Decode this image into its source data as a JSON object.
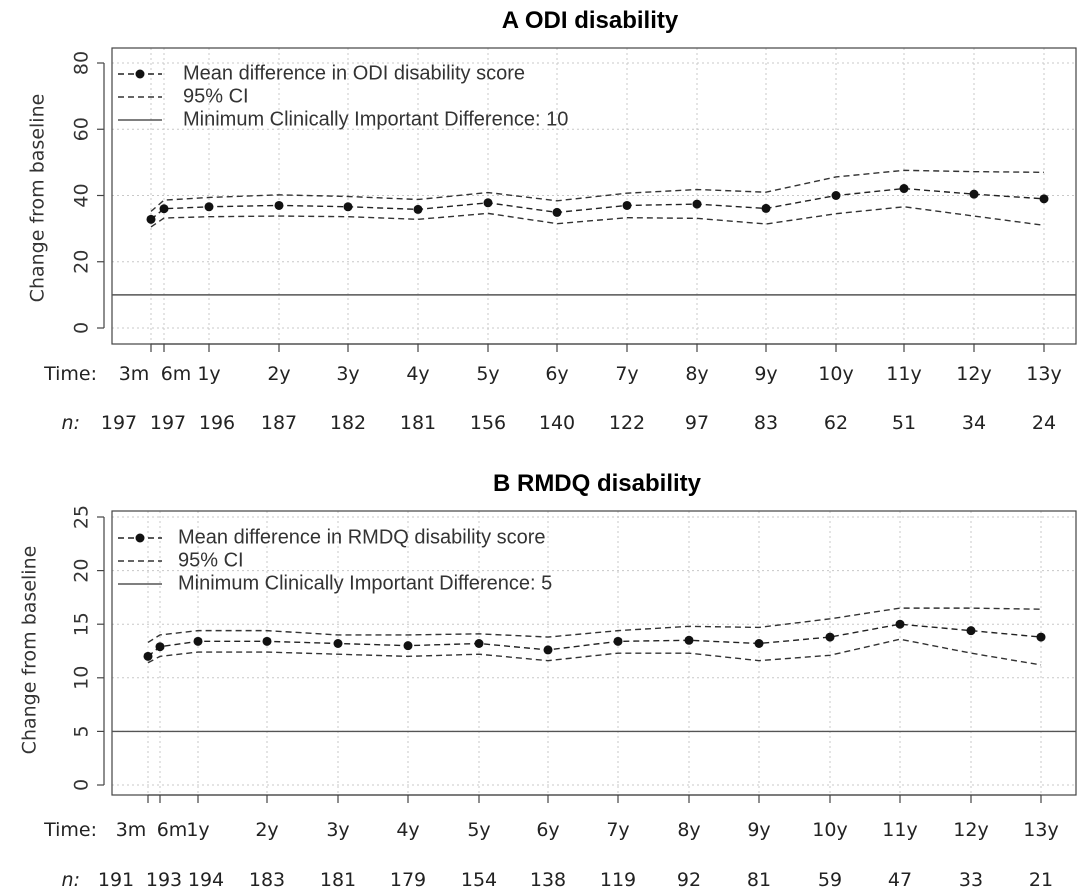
{
  "chart_data": [
    {
      "type": "line",
      "title": "A  ODI disability",
      "ylabel": "Change from baseline",
      "ylim": [
        -2,
        82
      ],
      "yticks": [
        0,
        20,
        40,
        60,
        80
      ],
      "time_label": "Time:",
      "n_label": "n:",
      "x": [
        "3m",
        "6m",
        "1y",
        "2y",
        "3y",
        "4y",
        "5y",
        "6y",
        "7y",
        "8y",
        "9y",
        "10y",
        "11y",
        "12y",
        "13y"
      ],
      "x_years": [
        0.25,
        0.5,
        1,
        2,
        3,
        4,
        5,
        6,
        7,
        8,
        9,
        10,
        11,
        12,
        13
      ],
      "n": [
        "197",
        "197",
        "196",
        "187",
        "182",
        "181",
        "156",
        "140",
        "122",
        "97",
        "83",
        "62",
        "51",
        "34",
        "24"
      ],
      "series": [
        {
          "name": "Mean difference in ODI disability score",
          "values": [
            32.8,
            36.0,
            36.6,
            37.0,
            36.6,
            35.8,
            37.8,
            34.9,
            37.0,
            37.4,
            36.1,
            40.0,
            42.1,
            40.4,
            39.0
          ]
        },
        {
          "name": "95% CI",
          "lower": [
            30.5,
            33.2,
            33.6,
            33.8,
            33.6,
            32.8,
            34.6,
            31.5,
            33.3,
            33.1,
            31.4,
            34.5,
            36.6,
            33.8,
            31.0
          ],
          "upper": [
            35.2,
            38.6,
            39.4,
            40.2,
            39.7,
            38.8,
            40.9,
            38.4,
            40.7,
            41.8,
            41.0,
            45.6,
            47.6,
            47.2,
            47.0
          ]
        }
      ],
      "mcid": {
        "name": "Minimum Clinically Important Difference: 10",
        "value": 10
      },
      "grid": true,
      "legend": "top-left"
    },
    {
      "type": "line",
      "title": "B  RMDQ disability",
      "ylabel": "Change from baseline",
      "ylim": [
        -1,
        26
      ],
      "yticks": [
        0,
        5,
        10,
        15,
        20,
        25
      ],
      "time_label": "Time:",
      "n_label": "n:",
      "x": [
        "3m",
        "6m",
        "1y",
        "2y",
        "3y",
        "4y",
        "5y",
        "6y",
        "7y",
        "8y",
        "9y",
        "10y",
        "11y",
        "12y",
        "13y"
      ],
      "x_years": [
        0.25,
        0.5,
        1,
        2,
        3,
        4,
        5,
        6,
        7,
        8,
        9,
        10,
        11,
        12,
        13
      ],
      "n": [
        "191",
        "193",
        "194",
        "183",
        "181",
        "179",
        "154",
        "138",
        "119",
        "92",
        "81",
        "59",
        "47",
        "33",
        "21"
      ],
      "series": [
        {
          "name": "Mean difference in RMDQ disability score",
          "values": [
            12.0,
            12.9,
            13.4,
            13.4,
            13.2,
            13.0,
            13.2,
            12.6,
            13.4,
            13.5,
            13.2,
            13.8,
            15.0,
            14.4,
            13.8
          ]
        },
        {
          "name": "95% CI",
          "lower": [
            11.4,
            12.0,
            12.4,
            12.4,
            12.2,
            12.0,
            12.2,
            11.6,
            12.3,
            12.3,
            11.6,
            12.1,
            13.6,
            12.3,
            11.2
          ],
          "upper": [
            13.3,
            14.0,
            14.4,
            14.4,
            14.0,
            14.0,
            14.1,
            13.8,
            14.4,
            14.8,
            14.7,
            15.5,
            16.5,
            16.5,
            16.4
          ]
        }
      ],
      "mcid": {
        "name": "Minimum Clinically Important Difference: 5",
        "value": 5
      },
      "grid": true,
      "legend": "top-left"
    }
  ]
}
